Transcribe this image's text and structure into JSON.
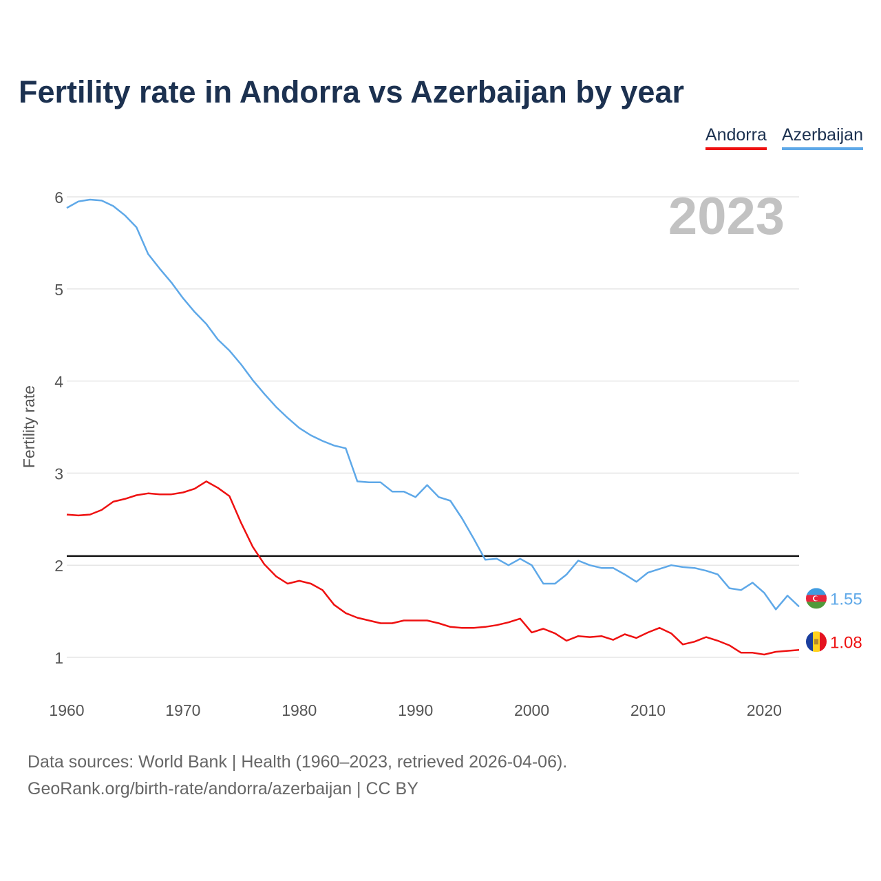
{
  "chart_data": {
    "type": "line",
    "title": "Fertility rate in Andorra vs Azerbaijan by year",
    "xlabel": "",
    "ylabel": "Fertility rate",
    "xlim": [
      1960,
      2023
    ],
    "ylim": [
      0.6,
      6.3
    ],
    "x_ticks": [
      1960,
      1970,
      1980,
      1990,
      2000,
      2010,
      2020
    ],
    "y_ticks": [
      1,
      2,
      3,
      4,
      5,
      6
    ],
    "grid": true,
    "legend_position": "top-right",
    "year_label": "2023",
    "reference_line": 2.1,
    "series": [
      {
        "name": "Andorra",
        "color": "#ee1111",
        "end_label": "1.08",
        "x": [
          1960,
          1961,
          1962,
          1963,
          1964,
          1965,
          1966,
          1967,
          1968,
          1969,
          1970,
          1971,
          1972,
          1973,
          1974,
          1975,
          1976,
          1977,
          1978,
          1979,
          1980,
          1981,
          1982,
          1983,
          1984,
          1985,
          1986,
          1987,
          1988,
          1989,
          1990,
          1991,
          1992,
          1993,
          1994,
          1995,
          1996,
          1997,
          1998,
          1999,
          2000,
          2001,
          2002,
          2003,
          2004,
          2005,
          2006,
          2007,
          2008,
          2009,
          2010,
          2011,
          2012,
          2013,
          2014,
          2015,
          2016,
          2017,
          2018,
          2019,
          2020,
          2021,
          2022,
          2023
        ],
        "values": [
          2.55,
          2.54,
          2.55,
          2.6,
          2.69,
          2.72,
          2.76,
          2.78,
          2.77,
          2.77,
          2.79,
          2.83,
          2.91,
          2.84,
          2.75,
          2.46,
          2.2,
          2.01,
          1.88,
          1.8,
          1.83,
          1.8,
          1.73,
          1.57,
          1.48,
          1.43,
          1.4,
          1.37,
          1.37,
          1.4,
          1.4,
          1.4,
          1.37,
          1.33,
          1.32,
          1.32,
          1.33,
          1.35,
          1.38,
          1.42,
          1.27,
          1.31,
          1.26,
          1.18,
          1.23,
          1.22,
          1.23,
          1.19,
          1.25,
          1.21,
          1.27,
          1.32,
          1.26,
          1.14,
          1.17,
          1.22,
          1.18,
          1.13,
          1.05,
          1.05,
          1.03,
          1.06,
          1.07,
          1.08
        ]
      },
      {
        "name": "Azerbaijan",
        "color": "#5ea8e8",
        "end_label": "1.55",
        "x": [
          1960,
          1961,
          1962,
          1963,
          1964,
          1965,
          1966,
          1967,
          1968,
          1969,
          1970,
          1971,
          1972,
          1973,
          1974,
          1975,
          1976,
          1977,
          1978,
          1979,
          1980,
          1981,
          1982,
          1983,
          1984,
          1985,
          1986,
          1987,
          1988,
          1989,
          1990,
          1991,
          1992,
          1993,
          1994,
          1995,
          1996,
          1997,
          1998,
          1999,
          2000,
          2001,
          2002,
          2003,
          2004,
          2005,
          2006,
          2007,
          2008,
          2009,
          2010,
          2011,
          2012,
          2013,
          2014,
          2015,
          2016,
          2017,
          2018,
          2019,
          2020,
          2021,
          2022,
          2023
        ],
        "values": [
          5.88,
          5.95,
          5.97,
          5.96,
          5.9,
          5.8,
          5.67,
          5.38,
          5.22,
          5.07,
          4.9,
          4.75,
          4.62,
          4.45,
          4.33,
          4.18,
          4.01,
          3.86,
          3.72,
          3.6,
          3.49,
          3.41,
          3.35,
          3.3,
          3.27,
          2.91,
          2.9,
          2.9,
          2.8,
          2.8,
          2.74,
          2.87,
          2.74,
          2.7,
          2.51,
          2.29,
          2.06,
          2.07,
          2.0,
          2.07,
          2.0,
          1.8,
          1.8,
          1.9,
          2.05,
          2.0,
          1.97,
          1.97,
          1.9,
          1.82,
          1.92,
          1.96,
          2.0,
          1.98,
          1.97,
          1.94,
          1.9,
          1.75,
          1.73,
          1.81,
          1.7,
          1.52,
          1.67,
          1.55
        ]
      }
    ]
  },
  "legend": {
    "andorra": "Andorra",
    "azerbaijan": "Azerbaijan"
  },
  "source": {
    "line1": "Data sources: World Bank | Health (1960–2023, retrieved 2026-04-06).",
    "line2": "GeoRank.org/birth-rate/andorra/azerbaijan | CC BY"
  }
}
